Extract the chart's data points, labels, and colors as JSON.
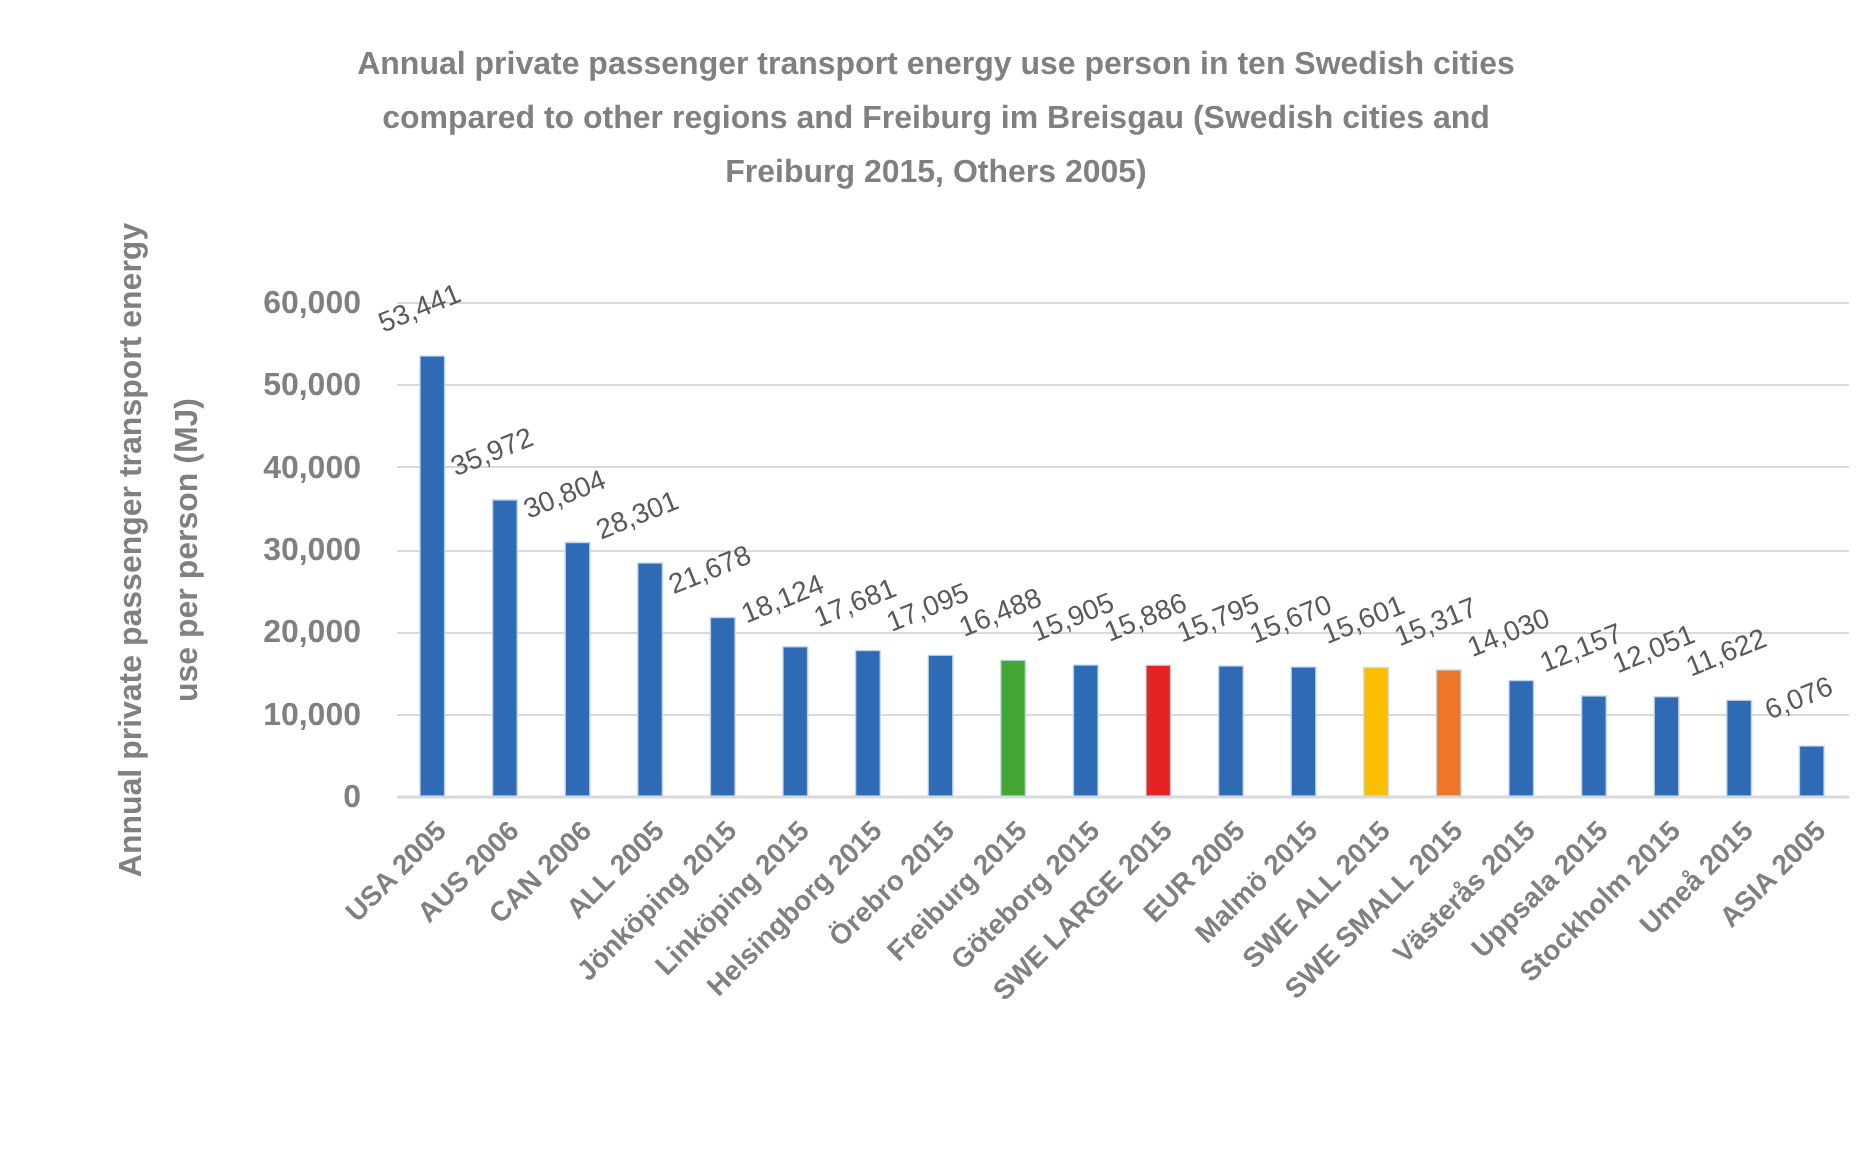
{
  "chart_data": {
    "type": "bar",
    "title": "Annual private passenger transport energy use person in ten Swedish cities compared to other regions and Freiburg im Breisgau (Swedish cities and Freiburg 2015, Others 2005)",
    "ylabel": "Annual private passenger transport energy use per person (MJ)",
    "categories": [
      "USA 2005",
      "AUS 2006",
      "CAN 2006",
      "ALL 2005",
      "Jönköping 2015",
      "Linköping 2015",
      "Helsingborg 2015",
      "Örebro 2015",
      "Freiburg 2015",
      "Göteborg 2015",
      "SWE LARGE 2015",
      "EUR 2005",
      "Malmö 2015",
      "SWE ALL 2015",
      "SWE SMALL 2015",
      "Västerås 2015",
      "Uppsala 2015",
      "Stockholm 2015",
      "Umeå 2015",
      "ASIA 2005"
    ],
    "values": [
      53441,
      35972,
      30804,
      28301,
      21678,
      18124,
      17681,
      17095,
      16488,
      15905,
      15886,
      15795,
      15670,
      15601,
      15317,
      14030,
      12157,
      12051,
      11622,
      6076
    ],
    "value_labels": [
      "53,441",
      "35,972",
      "30,804",
      "28,301",
      "21,678",
      "18,124",
      "17,681",
      "17,095",
      "16,488",
      "15,905",
      "15,886",
      "15,795",
      "15,670",
      "15,601",
      "15,317",
      "14,030",
      "12,157",
      "12,051",
      "11,622",
      "6,076"
    ],
    "colors": [
      "#2e6bb4",
      "#2e6bb4",
      "#2e6bb4",
      "#2e6bb4",
      "#2e6bb4",
      "#2e6bb4",
      "#2e6bb4",
      "#2e6bb4",
      "#43a634",
      "#2e6bb4",
      "#e52323",
      "#2e6bb4",
      "#2e6bb4",
      "#fcbf00",
      "#ee7628",
      "#2e6bb4",
      "#2e6bb4",
      "#2e6bb4",
      "#2e6bb4",
      "#2e6bb4"
    ],
    "ylim": [
      0,
      60000
    ],
    "yticks": [
      0,
      {
        "value": 10000,
        "label": "10,000"
      },
      {
        "value": 20000,
        "label": "20,000"
      },
      {
        "value": 30000,
        "label": "30,000"
      },
      {
        "value": 40000,
        "label": "40,000"
      },
      {
        "value": 50000,
        "label": "50,000"
      },
      {
        "value": 60000,
        "label": "60,000"
      }
    ],
    "grid": "y"
  }
}
